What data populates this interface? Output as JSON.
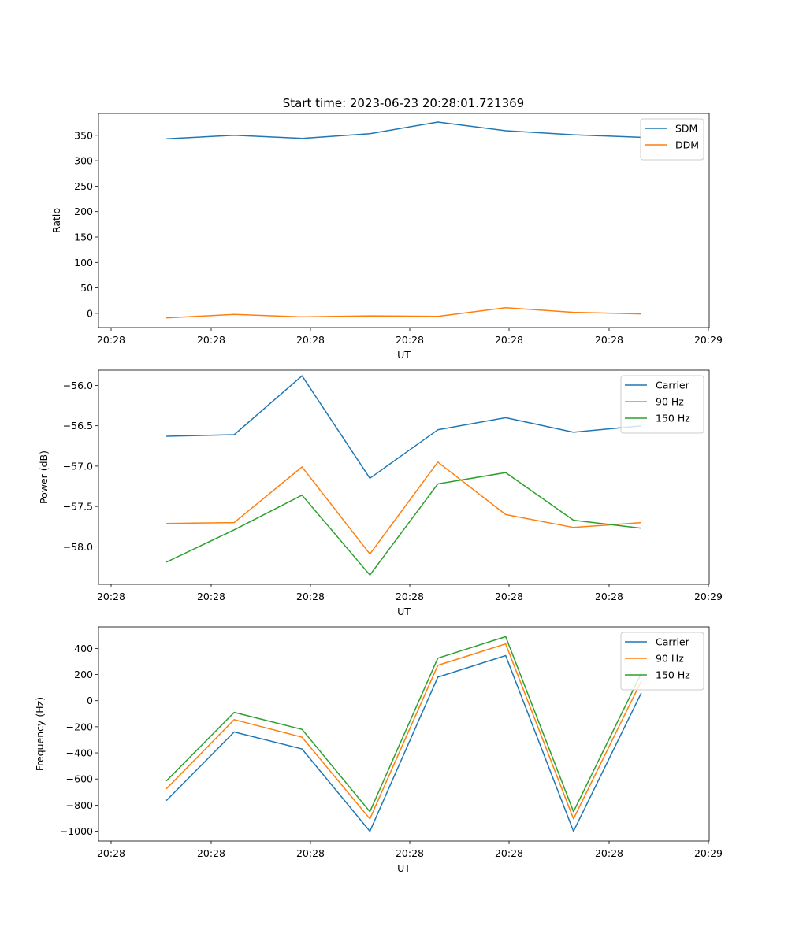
{
  "figure": {
    "title": "Start time: 2023-06-23 20:28:01.721369"
  },
  "chart_data": [
    {
      "type": "line",
      "xlabel": "UT",
      "ylabel": "Ratio",
      "x_tick_labels": [
        "20:28",
        "20:28",
        "20:28",
        "20:28",
        "20:28",
        "20:28",
        "20:28"
      ],
      "x_tick_end_label": "20:29",
      "xlim": [
        0,
        9
      ],
      "ylim": [
        -28,
        393
      ],
      "yticks": [
        0,
        50,
        100,
        150,
        200,
        250,
        300,
        350
      ],
      "legend_position": "top-right",
      "x": [
        1,
        2,
        3,
        4,
        5,
        6,
        7,
        8
      ],
      "series": [
        {
          "name": "SDM",
          "color": "#1f77b4",
          "values": [
            343,
            350,
            344,
            353,
            376,
            359,
            351,
            346
          ]
        },
        {
          "name": "DDM",
          "color": "#ff7f0e",
          "values": [
            -9,
            -2,
            -7,
            -5,
            -6,
            11,
            2,
            -1
          ]
        }
      ]
    },
    {
      "type": "line",
      "xlabel": "UT",
      "ylabel": "Power (dB)",
      "x_tick_labels": [
        "20:28",
        "20:28",
        "20:28",
        "20:28",
        "20:28",
        "20:28",
        "20:28"
      ],
      "x_tick_end_label": "20:29",
      "xlim": [
        0,
        9
      ],
      "ylim": [
        -58.465,
        -55.81
      ],
      "yticks": [
        -58.0,
        -57.5,
        -57.0,
        -56.5,
        -56.0
      ],
      "ytick_labels": [
        "−58.0",
        "−57.5",
        "−57.0",
        "−56.5",
        "−56.0"
      ],
      "legend_position": "top-right",
      "x": [
        1,
        2,
        3,
        4,
        5,
        6,
        7,
        8
      ],
      "series": [
        {
          "name": "Carrier",
          "color": "#1f77b4",
          "values": [
            -56.63,
            -56.61,
            -55.88,
            -57.15,
            -56.55,
            -56.4,
            -56.58,
            -56.5
          ]
        },
        {
          "name": "90 Hz",
          "color": "#ff7f0e",
          "values": [
            -57.71,
            -57.7,
            -57.01,
            -58.09,
            -56.95,
            -57.6,
            -57.76,
            -57.7
          ]
        },
        {
          "name": "150 Hz",
          "color": "#2ca02c",
          "values": [
            -58.19,
            -57.79,
            -57.36,
            -58.35,
            -57.22,
            -57.08,
            -57.67,
            -57.77
          ]
        }
      ]
    },
    {
      "type": "line",
      "xlabel": "UT",
      "ylabel": "Frequency (Hz)",
      "x_tick_labels": [
        "20:28",
        "20:28",
        "20:28",
        "20:28",
        "20:28",
        "20:28",
        "20:28"
      ],
      "x_tick_end_label": "20:29",
      "xlim": [
        0,
        9
      ],
      "ylim": [
        -1075,
        565
      ],
      "yticks": [
        -1000,
        -800,
        -600,
        -400,
        -200,
        0,
        200,
        400
      ],
      "ytick_labels": [
        "−1000",
        "−800",
        "−600",
        "−400",
        "−200",
        "0",
        "200",
        "400"
      ],
      "legend_position": "top-right",
      "x": [
        1,
        2,
        3,
        4,
        5,
        6,
        7,
        8
      ],
      "series": [
        {
          "name": "Carrier",
          "color": "#1f77b4",
          "values": [
            -765,
            -240,
            -370,
            -1000,
            180,
            345,
            -1000,
            60
          ]
        },
        {
          "name": "90 Hz",
          "color": "#ff7f0e",
          "values": [
            -675,
            -145,
            -280,
            -905,
            270,
            435,
            -905,
            150
          ]
        },
        {
          "name": "150 Hz",
          "color": "#2ca02c",
          "values": [
            -615,
            -90,
            -220,
            -850,
            325,
            490,
            -850,
            210
          ]
        }
      ]
    }
  ]
}
